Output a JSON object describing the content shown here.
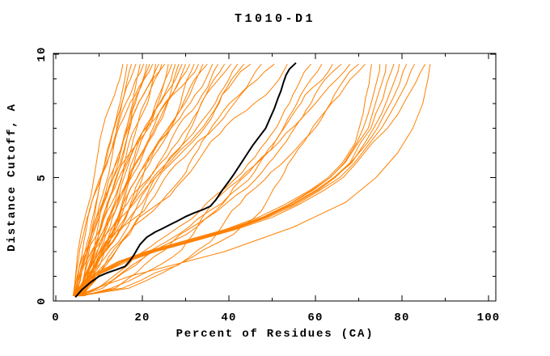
{
  "figure_background": "#ffffff",
  "chart_data": {
    "type": "line",
    "title": "T1010-D1",
    "xlabel": "Percent of Residues (CA)",
    "ylabel": "Distance Cutoff, A",
    "xlim": [
      0,
      102
    ],
    "ylim": [
      0,
      10
    ],
    "x_major_ticks": [
      0,
      20,
      40,
      60,
      80,
      100
    ],
    "x_minor_step": 10,
    "y_major_ticks": [
      0,
      5,
      10
    ],
    "y_minor_step": 1,
    "grid": false,
    "legend": "none",
    "y_max_data": 9.6,
    "colors": {
      "model": "#ff8000",
      "reference": "#000000",
      "frame": "#000000",
      "text": "#000000"
    },
    "reference_series": {
      "name": "reference-model-black",
      "points": [
        [
          4.5,
          0.15
        ],
        [
          6,
          0.45
        ],
        [
          8,
          0.75
        ],
        [
          10,
          1.0
        ],
        [
          12,
          1.15
        ],
        [
          14,
          1.27
        ],
        [
          16,
          1.4
        ],
        [
          17,
          1.6
        ],
        [
          18,
          1.85
        ],
        [
          19,
          2.15
        ],
        [
          19.5,
          2.3
        ],
        [
          21,
          2.58
        ],
        [
          23,
          2.8
        ],
        [
          24.5,
          2.92
        ],
        [
          26.5,
          3.1
        ],
        [
          28.2,
          3.25
        ],
        [
          30,
          3.42
        ],
        [
          32,
          3.57
        ],
        [
          34,
          3.7
        ],
        [
          35.7,
          3.84
        ],
        [
          37,
          4.1
        ],
        [
          38.5,
          4.5
        ],
        [
          40,
          4.85
        ],
        [
          41,
          5.1
        ],
        [
          42.5,
          5.5
        ],
        [
          44,
          5.9
        ],
        [
          45.5,
          6.3
        ],
        [
          47,
          6.65
        ],
        [
          48.5,
          7.0
        ],
        [
          49.5,
          7.4
        ],
        [
          50.5,
          7.8
        ],
        [
          51.3,
          8.2
        ],
        [
          52,
          8.5
        ],
        [
          52.6,
          8.85
        ],
        [
          53.2,
          9.15
        ],
        [
          54,
          9.4
        ],
        [
          55.5,
          9.65
        ]
      ]
    },
    "band_profile": {
      "ys": [
        0.25,
        0.7,
        1.1,
        1.6,
        2.0,
        2.4,
        2.9,
        3.4,
        3.9,
        4.5,
        5.0,
        5.6,
        6.4
      ],
      "xs": [
        4.5,
        7.5,
        9.5,
        15,
        22,
        30,
        40,
        48,
        54,
        60,
        64,
        67.5,
        70.5
      ],
      "tail_ys": [
        7.0,
        7.6,
        8.2,
        8.8,
        9.3,
        9.6
      ],
      "tail_exponent": 0.75
    },
    "model_series": [
      {
        "mode": "fan",
        "start": 4.2,
        "end": 15.5,
        "p": 1.35,
        "seed": 11
      },
      {
        "mode": "fan",
        "start": 4.8,
        "end": 16.5,
        "p": 1.1,
        "seed": 12
      },
      {
        "mode": "fan",
        "start": 5.5,
        "end": 17.5,
        "p": 0.92,
        "seed": 13
      },
      {
        "mode": "fan",
        "start": 4.0,
        "end": 18.5,
        "p": 1.25,
        "seed": 14
      },
      {
        "mode": "fan",
        "start": 6.2,
        "end": 19.5,
        "p": 1.0,
        "seed": 15
      },
      {
        "mode": "fan",
        "start": 4.5,
        "end": 20.3,
        "p": 1.42,
        "seed": 16
      },
      {
        "mode": "fan",
        "start": 5.0,
        "end": 21.0,
        "p": 0.85,
        "seed": 17
      },
      {
        "mode": "fan",
        "start": 5.8,
        "end": 21.7,
        "p": 1.15,
        "seed": 18
      },
      {
        "mode": "fan",
        "start": 4.3,
        "end": 22.4,
        "p": 1.3,
        "seed": 19
      },
      {
        "mode": "fan",
        "start": 6.5,
        "end": 23.1,
        "p": 0.95,
        "seed": 20
      },
      {
        "mode": "fan",
        "start": 4.9,
        "end": 23.8,
        "p": 1.2,
        "seed": 21
      },
      {
        "mode": "fan",
        "start": 5.3,
        "end": 24.5,
        "p": 1.05,
        "seed": 22
      },
      {
        "mode": "fan",
        "start": 4.1,
        "end": 25.2,
        "p": 1.35,
        "seed": 23
      },
      {
        "mode": "fan",
        "start": 6.0,
        "end": 26.0,
        "p": 0.8,
        "seed": 24
      },
      {
        "mode": "fan",
        "start": 5.6,
        "end": 26.8,
        "p": 1.25,
        "seed": 25
      },
      {
        "mode": "fan",
        "start": 4.6,
        "end": 27.6,
        "p": 1.1,
        "seed": 26
      },
      {
        "mode": "fan",
        "start": 5.1,
        "end": 28.4,
        "p": 0.9,
        "seed": 27
      },
      {
        "mode": "fan",
        "start": 6.8,
        "end": 29.2,
        "p": 1.3,
        "seed": 28
      },
      {
        "mode": "fan",
        "start": 4.4,
        "end": 30.0,
        "p": 1.0,
        "seed": 29
      },
      {
        "mode": "fan",
        "start": 5.9,
        "end": 31.0,
        "p": 1.2,
        "seed": 30
      },
      {
        "mode": "fan",
        "start": 5.2,
        "end": 32.0,
        "p": 0.85,
        "seed": 31
      },
      {
        "mode": "fan",
        "start": 4.7,
        "end": 33.0,
        "p": 1.4,
        "seed": 32
      },
      {
        "mode": "fan",
        "start": 6.3,
        "end": 34.0,
        "p": 1.05,
        "seed": 33
      },
      {
        "mode": "fan",
        "start": 5.4,
        "end": 35.0,
        "p": 1.15,
        "seed": 34
      },
      {
        "mode": "fan",
        "start": 4.8,
        "end": 36.2,
        "p": 0.95,
        "seed": 35
      },
      {
        "mode": "fan",
        "start": 6.1,
        "end": 37.5,
        "p": 1.25,
        "seed": 36
      },
      {
        "mode": "fan",
        "start": 5.0,
        "end": 39.0,
        "p": 1.1,
        "seed": 37
      },
      {
        "mode": "fan",
        "start": 4.3,
        "end": 40.5,
        "p": 0.9,
        "seed": 38
      },
      {
        "mode": "fan",
        "start": 5.7,
        "end": 42.0,
        "p": 1.3,
        "seed": 39
      },
      {
        "mode": "fan",
        "start": 6.4,
        "end": 43.5,
        "p": 1.0,
        "seed": 40
      },
      {
        "mode": "fan",
        "start": 4.9,
        "end": 45.0,
        "p": 1.2,
        "seed": 41
      },
      {
        "mode": "fan",
        "start": 5.3,
        "end": 47.5,
        "p": 0.95,
        "seed": 42
      },
      {
        "mode": "fan",
        "start": 6.0,
        "end": 50.5,
        "p": 1.12,
        "seed": 43
      },
      {
        "mode": "fan",
        "start": 4.6,
        "end": 53.5,
        "p": 1.05,
        "seed": 44
      },
      {
        "mode": "fan",
        "start": 5.5,
        "end": 59.0,
        "p": 0.75,
        "seed": 45
      },
      {
        "mode": "fan",
        "start": 4.8,
        "end": 61.5,
        "p": 0.7,
        "seed": 46
      },
      {
        "mode": "fan",
        "start": 6.2,
        "end": 64.0,
        "p": 0.68,
        "seed": 47
      },
      {
        "mode": "fan",
        "start": 5.0,
        "end": 66.0,
        "p": 0.62,
        "seed": 48
      },
      {
        "mode": "fan",
        "start": 5.8,
        "end": 68.0,
        "p": 0.6,
        "seed": 49
      },
      {
        "mode": "fan",
        "start": 4.5,
        "end": 70.0,
        "p": 0.56,
        "seed": 50
      },
      {
        "mode": "fan",
        "start": 5.2,
        "end": 71.5,
        "p": 0.52,
        "seed": 51
      },
      {
        "mode": "band",
        "offset": -1.5,
        "end": 73.0,
        "seed": 61
      },
      {
        "mode": "band",
        "offset": -0.8,
        "end": 75.0,
        "seed": 62
      },
      {
        "mode": "band",
        "offset": -0.3,
        "end": 76.5,
        "seed": 63
      },
      {
        "mode": "band",
        "offset": 0.2,
        "end": 78.0,
        "seed": 64
      },
      {
        "mode": "band",
        "offset": 0.6,
        "end": 79.5,
        "seed": 65
      },
      {
        "mode": "band",
        "offset": 1.1,
        "end": 81.0,
        "seed": 66
      },
      {
        "mode": "band",
        "offset": 1.8,
        "end": 83.0,
        "seed": 67
      },
      {
        "mode": "band",
        "offset": 2.6,
        "end": 85.5,
        "seed": 68
      },
      {
        "mode": "points",
        "seed": 69,
        "points": [
          [
            6,
            0.3
          ],
          [
            17,
            1.0
          ],
          [
            39,
            2.0
          ],
          [
            55,
            3.0
          ],
          [
            67,
            4.0
          ],
          [
            74,
            5.0
          ],
          [
            79,
            6.0
          ],
          [
            82.5,
            7.0
          ],
          [
            84.8,
            8.0
          ],
          [
            86,
            9.0
          ],
          [
            86.5,
            9.6
          ]
        ]
      }
    ]
  }
}
